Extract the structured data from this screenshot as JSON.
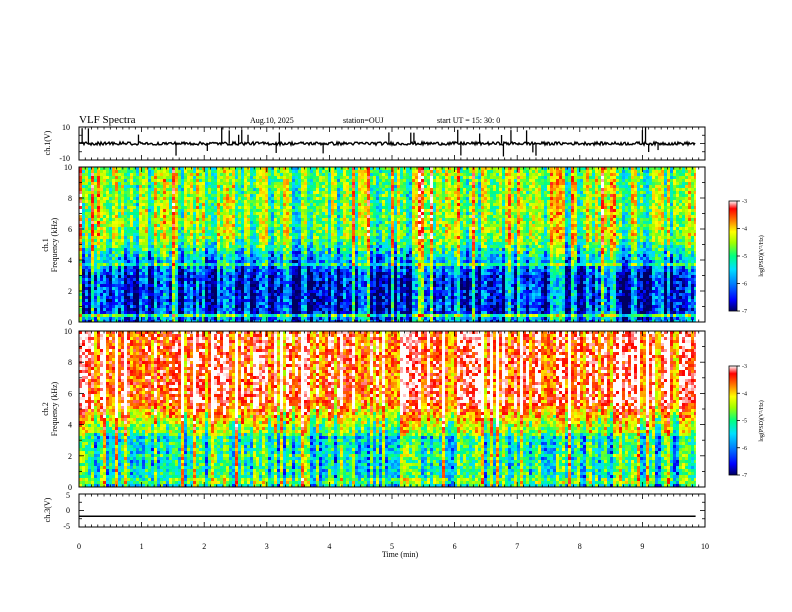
{
  "header": {
    "title": "VLF Spectra",
    "date": "Aug.10, 2025",
    "station": "station=OUJ",
    "start": "start  UT =   15: 30: 0"
  },
  "axes": {
    "ch1_wave_label": "ch.1(V)",
    "ch3_wave_label": "ch.3(V)",
    "spec1_label": "ch.1",
    "spec2_label": "ch.2",
    "freq_label": "Frequency  (kHz)",
    "time_label": "Time  (min)",
    "colorbar_label": "log(PSD)(V²/Hz)"
  },
  "chart_data": [
    {
      "id": "ch1-waveform",
      "type": "line",
      "ylabel": "ch.1(V)",
      "ylim": [
        -10,
        10
      ],
      "yticks": [
        "10",
        "-10"
      ],
      "xlim": [
        0,
        9.85
      ],
      "baseline": 0,
      "spike_times": [
        0.05,
        0.15,
        0.95,
        1.55,
        2.05,
        2.28,
        2.4,
        2.55,
        2.6,
        2.7,
        3.15,
        3.2,
        3.9,
        4.95,
        5.3,
        5.35,
        6.05,
        6.1,
        6.4,
        6.75,
        6.78,
        6.9,
        7.15,
        7.25,
        7.3,
        9.0,
        9.05,
        9.1,
        9.25
      ]
    },
    {
      "id": "ch1-spectrogram",
      "type": "heatmap",
      "ylabel": "Frequency (kHz)",
      "ylim": [
        0,
        10
      ],
      "yticks": [
        "0",
        "2",
        "4",
        "6",
        "8",
        "10"
      ],
      "xlim": [
        0,
        9.85
      ],
      "color_range": [
        -7,
        -3
      ],
      "hf_level": 0.52,
      "lf_level": 0.12
    },
    {
      "id": "ch2-spectrogram",
      "type": "heatmap",
      "ylabel": "Frequency (kHz)",
      "ylim": [
        0,
        10
      ],
      "yticks": [
        "0",
        "2",
        "4",
        "6",
        "8",
        "10"
      ],
      "xlim": [
        0,
        9.85
      ],
      "color_range": [
        -7,
        -3
      ],
      "hf_level": 0.86,
      "lf_level": 0.38
    },
    {
      "id": "ch3-waveform",
      "type": "line",
      "ylabel": "ch.3(V)",
      "ylim": [
        -5,
        5
      ],
      "yticks": [
        "5",
        "0",
        "-5"
      ],
      "xlim": [
        0,
        9.85
      ],
      "constant_value": -1.8
    }
  ],
  "xaxis": {
    "range": [
      0,
      10
    ],
    "ticks": [
      "0",
      "1",
      "2",
      "3",
      "4",
      "5",
      "6",
      "7",
      "8",
      "9",
      "10"
    ]
  },
  "colorbar": {
    "range": [
      -7,
      -3
    ],
    "ticks": [
      "-3",
      "-4",
      "-5",
      "-6",
      "-7"
    ],
    "colors": [
      "#000060",
      "#0000ff",
      "#0080ff",
      "#00e0ff",
      "#00ff80",
      "#a0ff00",
      "#ffff00",
      "#ff8000",
      "#ff0000",
      "#ffffff"
    ]
  }
}
